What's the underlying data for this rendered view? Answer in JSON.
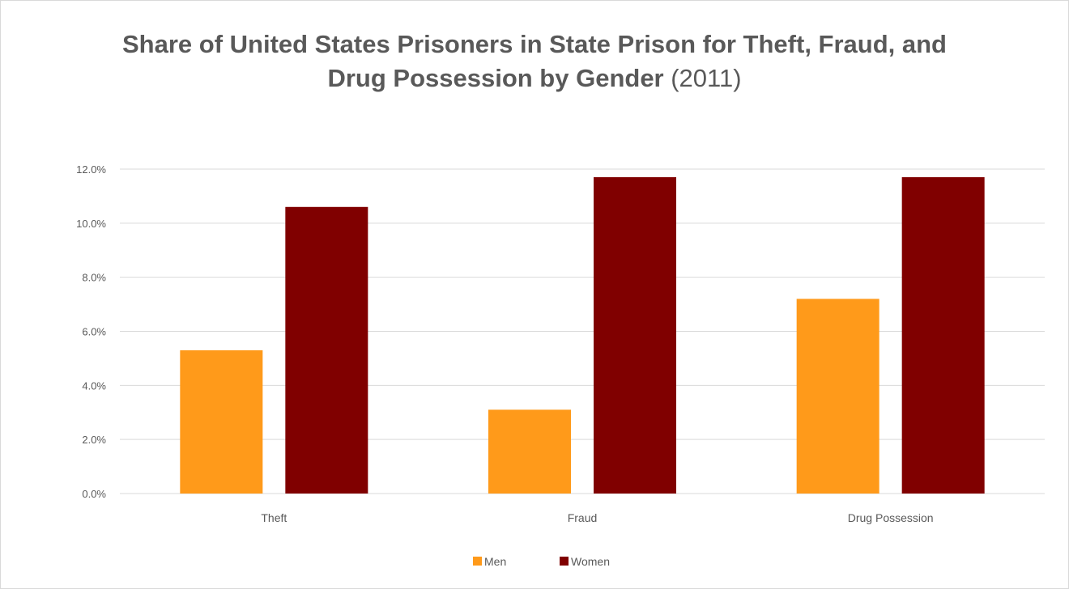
{
  "chart_data": {
    "type": "bar",
    "title_main": "Share of United States Prisoners in State Prison for Theft, Fraud, and",
    "title_line2_bold": "Drug Possession by Gender",
    "title_line2_suffix": " (2011)",
    "categories": [
      "Theft",
      "Fraud",
      "Drug Possession"
    ],
    "series": [
      {
        "name": "Men",
        "color": "#ff9a1a",
        "values": [
          5.3,
          3.1,
          7.2
        ]
      },
      {
        "name": "Women",
        "color": "#800000",
        "values": [
          10.6,
          11.7,
          11.7
        ]
      }
    ],
    "ylim": [
      0,
      12
    ],
    "yticks": [
      0,
      2,
      4,
      6,
      8,
      10,
      12
    ],
    "ytick_labels": [
      "0.0%",
      "2.0%",
      "4.0%",
      "6.0%",
      "8.0%",
      "10.0%",
      "12.0%"
    ],
    "grid": true,
    "legend": "bottom-center",
    "gridline_color": "#d9d9d9"
  }
}
